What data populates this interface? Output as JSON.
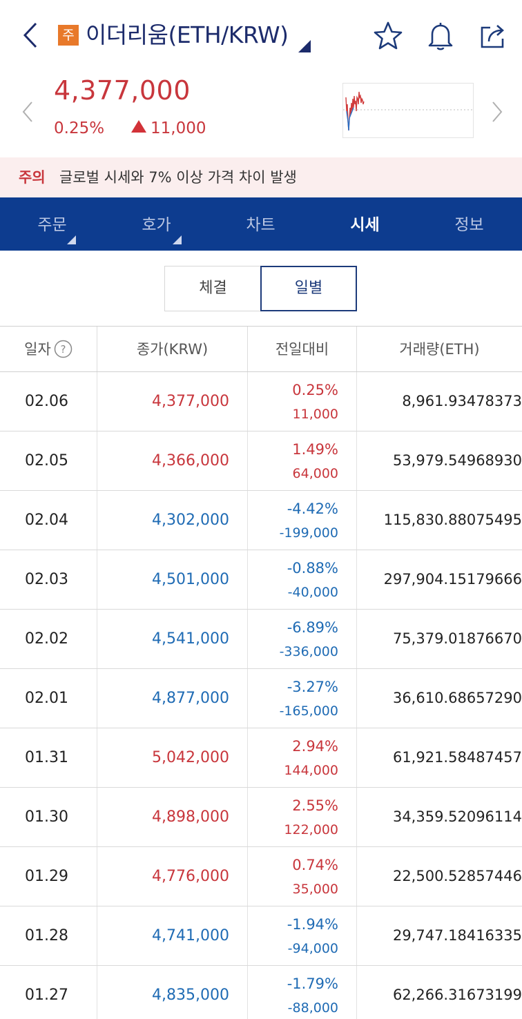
{
  "header": {
    "badge": "주",
    "title": "이더리움(ETH/KRW)"
  },
  "ticker": {
    "price": "4,377,000",
    "rate": "0.25%",
    "change": "11,000"
  },
  "warning": {
    "label": "주의",
    "text": "글로벌 시세와 7% 이상 가격 차이 발생"
  },
  "tabs": [
    {
      "label": "주문"
    },
    {
      "label": "호가"
    },
    {
      "label": "차트"
    },
    {
      "label": "시세"
    },
    {
      "label": "정보"
    }
  ],
  "segment": {
    "left_label": "체결",
    "right_label": "일별"
  },
  "table": {
    "headers": [
      "일자",
      "종가(KRW)",
      "전일대비",
      "거래량(ETH)"
    ],
    "rows": [
      {
        "date": "02.06",
        "close": "4,377,000",
        "pct": "0.25%",
        "diff": "11,000",
        "vol": "8,961.93478373"
      },
      {
        "date": "02.05",
        "close": "4,366,000",
        "pct": "1.49%",
        "diff": "64,000",
        "vol": "53,979.54968930"
      },
      {
        "date": "02.04",
        "close": "4,302,000",
        "pct": "-4.42%",
        "diff": "-199,000",
        "vol": "115,830.88075495"
      },
      {
        "date": "02.03",
        "close": "4,501,000",
        "pct": "-0.88%",
        "diff": "-40,000",
        "vol": "297,904.15179666"
      },
      {
        "date": "02.02",
        "close": "4,541,000",
        "pct": "-6.89%",
        "diff": "-336,000",
        "vol": "75,379.01876670"
      },
      {
        "date": "02.01",
        "close": "4,877,000",
        "pct": "-3.27%",
        "diff": "-165,000",
        "vol": "36,610.68657290"
      },
      {
        "date": "01.31",
        "close": "5,042,000",
        "pct": "2.94%",
        "diff": "144,000",
        "vol": "61,921.58487457"
      },
      {
        "date": "01.30",
        "close": "4,898,000",
        "pct": "2.55%",
        "diff": "122,000",
        "vol": "34,359.52096114"
      },
      {
        "date": "01.29",
        "close": "4,776,000",
        "pct": "0.74%",
        "diff": "35,000",
        "vol": "22,500.52857446"
      },
      {
        "date": "01.28",
        "close": "4,741,000",
        "pct": "-1.94%",
        "diff": "-94,000",
        "vol": "29,747.18416335"
      },
      {
        "date": "01.27",
        "close": "4,835,000",
        "pct": "-1.79%",
        "diff": "-88,000",
        "vol": "62,266.31673199"
      }
    ]
  },
  "colors": {
    "up": "#c8363c",
    "down": "#1f6bb4",
    "navy": "#0d3c8f",
    "badge": "#e8792a"
  },
  "icons": [
    "back-icon",
    "star-icon",
    "bell-icon",
    "share-icon",
    "chevron-left-icon",
    "chevron-right-icon",
    "help-icon"
  ]
}
